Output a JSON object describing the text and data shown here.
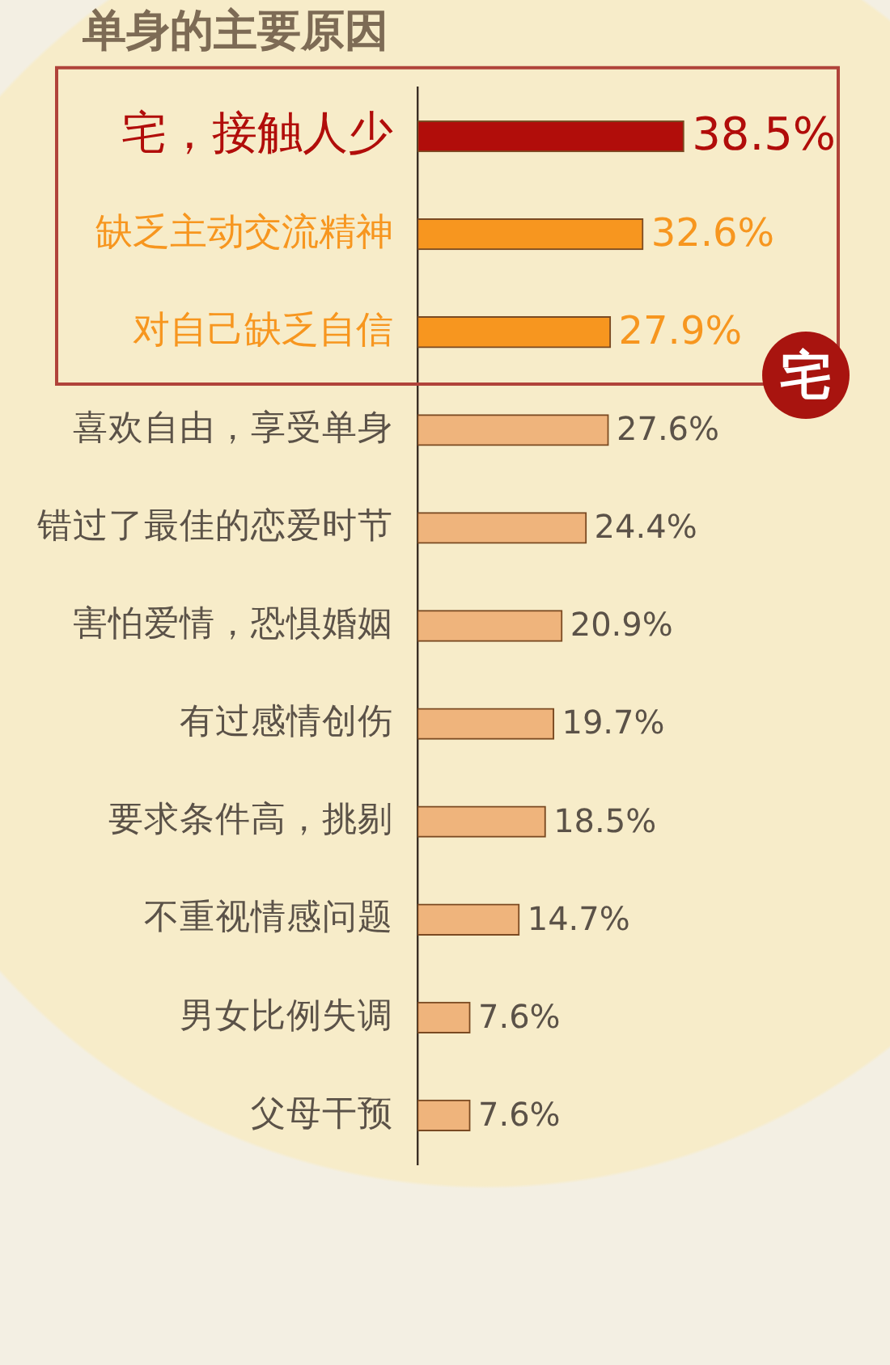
{
  "chart_data": {
    "type": "bar",
    "orientation": "horizontal",
    "title": "单身的主要原因",
    "categories": [
      "宅，接触人少",
      "缺乏主动交流精神",
      "对自己缺乏自信",
      "喜欢自由，享受单身",
      "错过了最佳的恋爱时节",
      "害怕爱情，恐惧婚姻",
      "有过感情创伤",
      "要求条件高，挑剔",
      "不重视情感问题",
      "男女比例失调",
      "父母干预"
    ],
    "values": [
      38.5,
      32.6,
      27.9,
      27.6,
      24.4,
      20.9,
      19.7,
      18.5,
      14.7,
      7.6,
      7.6
    ],
    "value_labels": [
      "38.5%",
      "32.6%",
      "27.9%",
      "27.6%",
      "24.4%",
      "20.9%",
      "19.7%",
      "18.5%",
      "14.7%",
      "7.6%",
      "7.6%"
    ],
    "colors": [
      "#b10d0a",
      "#f7961f",
      "#f7961f",
      "#efb47c",
      "#efb47c",
      "#efb47c",
      "#efb47c",
      "#efb47c",
      "#efb47c",
      "#efb47c",
      "#efb47c"
    ],
    "annotations": [
      "宅"
    ],
    "tick_labels": "y"
  }
}
